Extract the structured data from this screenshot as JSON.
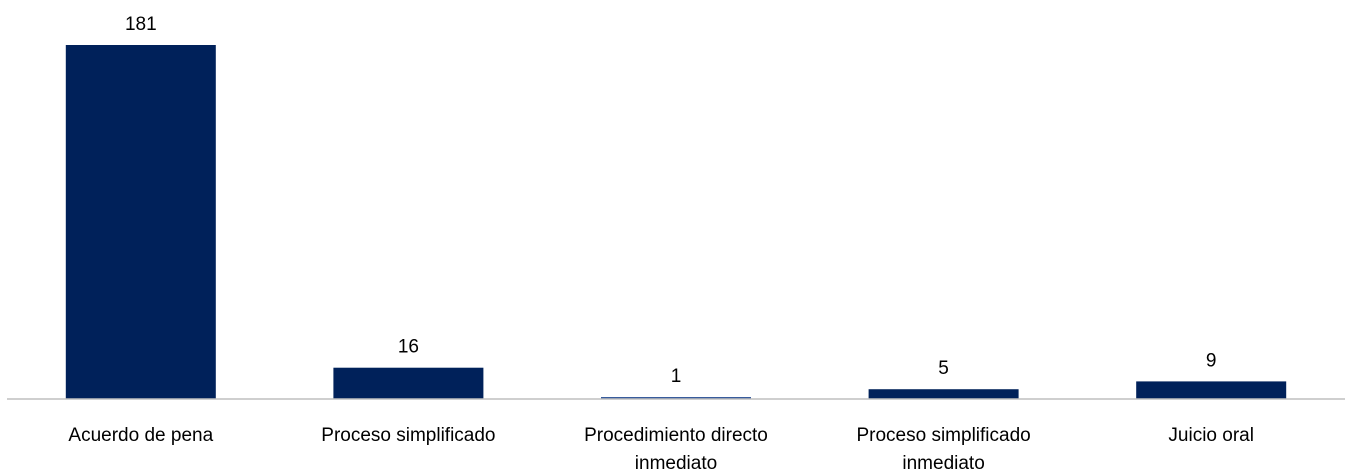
{
  "chart_data": {
    "type": "bar",
    "categories": [
      [
        "Acuerdo de pena"
      ],
      [
        "Proceso simplificado"
      ],
      [
        "Procedimiento directo",
        "inmediato"
      ],
      [
        "Proceso simplificado",
        "inmediato"
      ],
      [
        "Juicio oral"
      ]
    ],
    "values": [
      181,
      16,
      1,
      5,
      9
    ],
    "data_labels": [
      "181",
      "16",
      "1",
      "5",
      "9"
    ],
    "title": "",
    "xlabel": "",
    "ylabel": "",
    "ylim": [
      0,
      181
    ],
    "grid": false,
    "legend": "none",
    "colors": {
      "bar": "#00215a",
      "bar_small": "#2f5597",
      "axis": "#bfbfbf"
    }
  }
}
